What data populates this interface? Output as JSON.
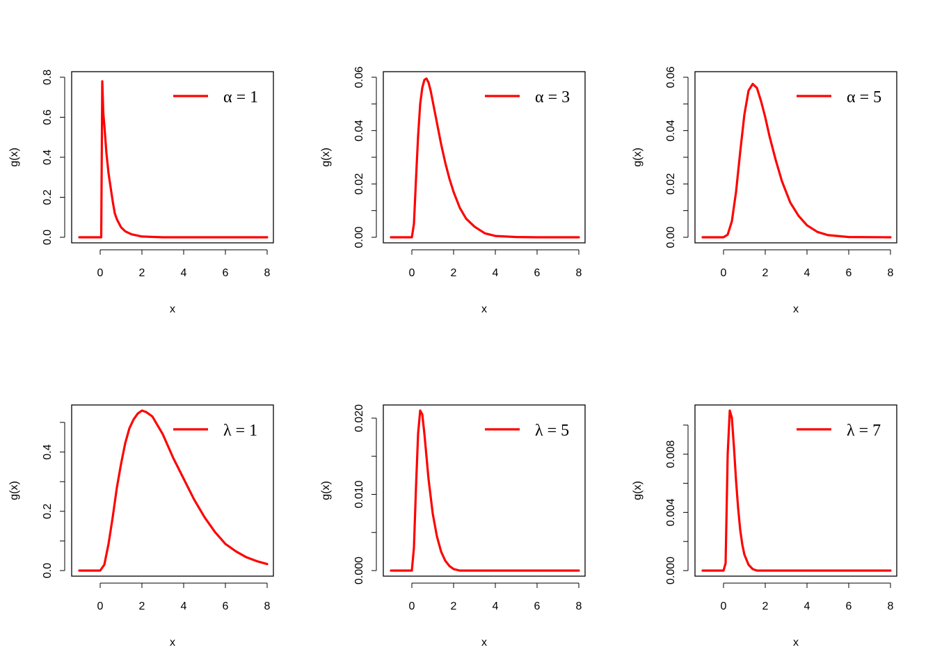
{
  "chart_data": [
    {
      "type": "line",
      "xlabel": "x",
      "ylabel": "g(x)",
      "xlim": [
        -1,
        8
      ],
      "ylim": [
        0,
        0.8
      ],
      "x_ticks": [
        0,
        2,
        4,
        6,
        8
      ],
      "y_ticks": [
        0,
        0.2,
        0.4,
        0.6,
        0.8
      ],
      "y_tick_labels": [
        "0.0",
        "0.2",
        "0.4",
        "0.6",
        "0.8"
      ],
      "grid": false,
      "legend_position": "top-right",
      "legend_label": "α = 1",
      "series": [
        {
          "color": "#ff0000",
          "x": [
            -1,
            -0.1,
            0.05,
            0.1,
            0.15,
            0.2,
            0.3,
            0.4,
            0.5,
            0.6,
            0.7,
            0.8,
            1.0,
            1.2,
            1.5,
            2.0,
            3.0,
            4.0,
            6.0,
            8.0
          ],
          "y": [
            0,
            0,
            0,
            0.78,
            0.62,
            0.56,
            0.42,
            0.32,
            0.25,
            0.18,
            0.12,
            0.09,
            0.05,
            0.03,
            0.015,
            0.004,
            0,
            0,
            0,
            0
          ]
        }
      ]
    },
    {
      "type": "line",
      "xlabel": "x",
      "ylabel": "g(x)",
      "xlim": [
        -1,
        8
      ],
      "ylim": [
        0,
        0.06
      ],
      "x_ticks": [
        0,
        2,
        4,
        6,
        8
      ],
      "y_ticks": [
        0,
        0.01,
        0.02,
        0.03,
        0.04,
        0.05,
        0.06
      ],
      "y_tick_labels": [
        "0.00",
        "",
        "0.02",
        "",
        "0.04",
        "",
        "0.06"
      ],
      "grid": false,
      "legend_position": "top-right",
      "legend_label": "α = 3",
      "series": [
        {
          "color": "#ff0000",
          "x": [
            -1,
            0,
            0.1,
            0.2,
            0.3,
            0.4,
            0.5,
            0.6,
            0.7,
            0.8,
            0.9,
            1.0,
            1.2,
            1.4,
            1.6,
            1.8,
            2.0,
            2.3,
            2.6,
            3.0,
            3.5,
            4.0,
            5.0,
            6.0,
            8.0
          ],
          "y": [
            0,
            0,
            0.005,
            0.022,
            0.038,
            0.05,
            0.056,
            0.059,
            0.0595,
            0.058,
            0.055,
            0.051,
            0.043,
            0.035,
            0.028,
            0.022,
            0.017,
            0.011,
            0.007,
            0.004,
            0.0015,
            0.0005,
            0.0001,
            0,
            0
          ]
        }
      ]
    },
    {
      "type": "line",
      "xlabel": "x",
      "ylabel": "g(x)",
      "xlim": [
        -1,
        8
      ],
      "ylim": [
        0,
        0.06
      ],
      "x_ticks": [
        0,
        2,
        4,
        6,
        8
      ],
      "y_ticks": [
        0,
        0.01,
        0.02,
        0.03,
        0.04,
        0.05,
        0.06
      ],
      "y_tick_labels": [
        "0.00",
        "",
        "0.02",
        "",
        "0.04",
        "",
        "0.06"
      ],
      "grid": false,
      "legend_position": "top-right",
      "legend_label": "α = 5",
      "series": [
        {
          "color": "#ff0000",
          "x": [
            -1,
            0,
            0.2,
            0.4,
            0.6,
            0.8,
            1.0,
            1.2,
            1.4,
            1.6,
            1.8,
            2.0,
            2.2,
            2.5,
            2.8,
            3.2,
            3.6,
            4.0,
            4.5,
            5.0,
            6.0,
            8.0
          ],
          "y": [
            0,
            0,
            0.001,
            0.006,
            0.017,
            0.032,
            0.046,
            0.055,
            0.0575,
            0.056,
            0.051,
            0.045,
            0.038,
            0.029,
            0.021,
            0.013,
            0.008,
            0.0045,
            0.002,
            0.0008,
            0.0001,
            0
          ]
        }
      ]
    },
    {
      "type": "line",
      "xlabel": "x",
      "ylabel": "g(x)",
      "xlim": [
        -1,
        8
      ],
      "ylim": [
        0,
        0.54
      ],
      "x_ticks": [
        0,
        2,
        4,
        6,
        8
      ],
      "y_ticks": [
        0,
        0.1,
        0.2,
        0.3,
        0.4,
        0.5
      ],
      "y_tick_labels": [
        "0.0",
        "",
        "0.2",
        "",
        "0.4",
        ""
      ],
      "grid": false,
      "legend_position": "top-right",
      "legend_label": "λ = 1",
      "series": [
        {
          "color": "#ff0000",
          "x": [
            -1,
            0,
            0.2,
            0.4,
            0.6,
            0.8,
            1.0,
            1.2,
            1.4,
            1.6,
            1.8,
            2.0,
            2.2,
            2.5,
            3.0,
            3.5,
            4.0,
            4.5,
            5.0,
            5.5,
            6.0,
            6.5,
            7.0,
            7.5,
            8.0
          ],
          "y": [
            0,
            0,
            0.02,
            0.09,
            0.18,
            0.28,
            0.36,
            0.43,
            0.48,
            0.51,
            0.53,
            0.54,
            0.535,
            0.52,
            0.46,
            0.38,
            0.31,
            0.24,
            0.18,
            0.13,
            0.09,
            0.065,
            0.045,
            0.032,
            0.022
          ]
        }
      ]
    },
    {
      "type": "line",
      "xlabel": "x",
      "ylabel": "g(x)",
      "xlim": [
        -1,
        8
      ],
      "ylim": [
        0,
        0.021
      ],
      "x_ticks": [
        0,
        2,
        4,
        6,
        8
      ],
      "y_ticks": [
        0,
        0.005,
        0.01,
        0.015,
        0.02
      ],
      "y_tick_labels": [
        "0.000",
        "",
        "0.010",
        "",
        "0.020"
      ],
      "grid": false,
      "legend_position": "top-right",
      "legend_label": "λ = 5",
      "series": [
        {
          "color": "#ff0000",
          "x": [
            -1,
            0,
            0.1,
            0.2,
            0.3,
            0.4,
            0.5,
            0.6,
            0.7,
            0.8,
            1.0,
            1.2,
            1.4,
            1.6,
            1.8,
            2.0,
            2.3,
            3.0,
            4.0,
            8.0
          ],
          "y": [
            0,
            0,
            0.003,
            0.011,
            0.018,
            0.021,
            0.0205,
            0.018,
            0.015,
            0.012,
            0.0075,
            0.0045,
            0.0025,
            0.0013,
            0.0006,
            0.0002,
            0,
            0,
            0,
            0
          ]
        }
      ]
    },
    {
      "type": "line",
      "xlabel": "x",
      "ylabel": "g(x)",
      "xlim": [
        -1,
        8
      ],
      "ylim": [
        0,
        0.011
      ],
      "x_ticks": [
        0,
        2,
        4,
        6,
        8
      ],
      "y_ticks": [
        0,
        0.002,
        0.004,
        0.006,
        0.008,
        0.01
      ],
      "y_tick_labels": [
        "0.000",
        "",
        "0.004",
        "",
        "0.008",
        ""
      ],
      "grid": false,
      "legend_position": "top-right",
      "legend_label": "λ = 7",
      "series": [
        {
          "color": "#ff0000",
          "x": [
            -1,
            0,
            0.1,
            0.2,
            0.3,
            0.4,
            0.5,
            0.6,
            0.7,
            0.8,
            0.9,
            1.0,
            1.2,
            1.4,
            1.6,
            1.8,
            2.0,
            3.0,
            8.0
          ],
          "y": [
            0,
            0,
            0.0005,
            0.008,
            0.011,
            0.0105,
            0.0085,
            0.0062,
            0.0043,
            0.0028,
            0.0018,
            0.0011,
            0.0004,
            0.0001,
            0,
            0,
            0,
            0,
            0
          ]
        }
      ]
    }
  ]
}
